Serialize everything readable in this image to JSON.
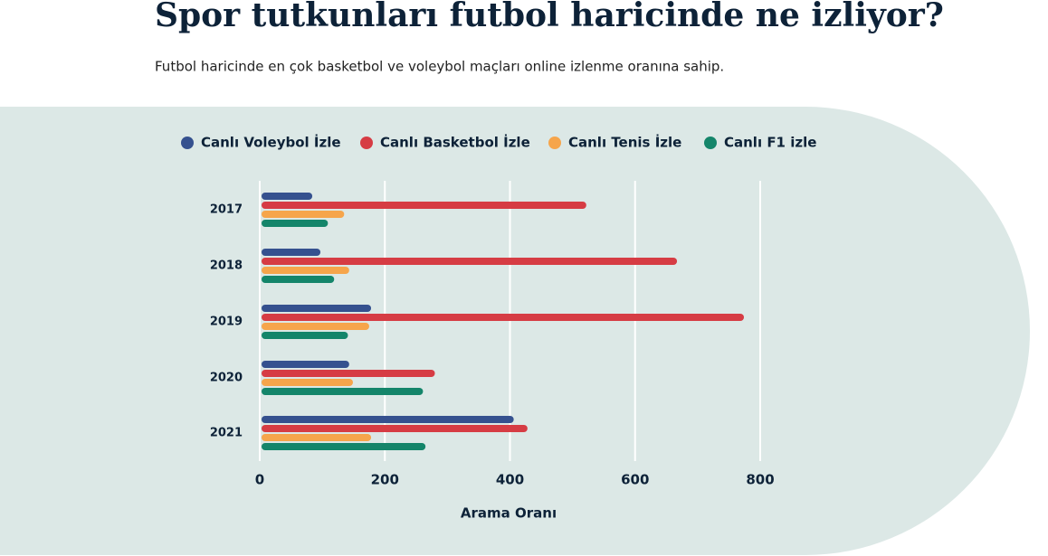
{
  "chart_data": {
    "type": "bar",
    "orientation": "horizontal",
    "title": "Spor tutkunları futbol haricinde ne izliyor?",
    "subtitle": "Futbol haricinde en çok basketbol ve voleybol maçları online izlenme oranına sahip.",
    "x_label": "Arama Oranı",
    "categories": [
      "2017",
      "2018",
      "2019",
      "2020",
      "2021"
    ],
    "series": [
      {
        "name": "Canlı Voleybol İzle",
        "color": "#35518f",
        "values": [
          84,
          97,
          178,
          143,
          406
        ]
      },
      {
        "name": "Canlı Basketbol İzle",
        "color": "#d63c44",
        "values": [
          522,
          667,
          774,
          280,
          428
        ]
      },
      {
        "name": "Canlı Tenis İzle",
        "color": "#f6a54b",
        "values": [
          135,
          143,
          175,
          149,
          178
        ]
      },
      {
        "name": "Canlı F1 izle",
        "color": "#14856a",
        "values": [
          109,
          119,
          141,
          261,
          265
        ]
      }
    ],
    "xlim": [
      0,
      800
    ],
    "xticks": [
      0,
      200,
      400,
      600,
      800
    ],
    "grid": true
  }
}
